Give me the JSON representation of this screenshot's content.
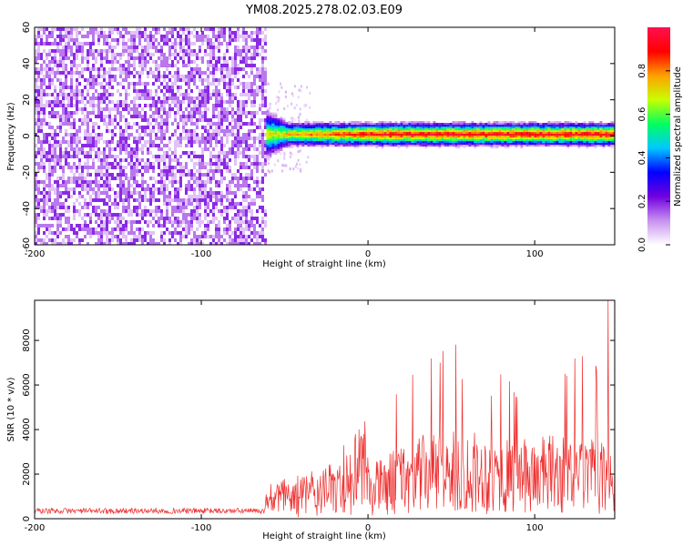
{
  "title": "YM08.2025.278.02.03.E09",
  "chart_data": [
    {
      "type": "heatmap",
      "xlabel": "Height of straight line (km)",
      "ylabel": "Frequency (Hz)",
      "xlim": [
        -200,
        148
      ],
      "ylim": [
        -60,
        60
      ],
      "xticks": [
        "-200",
        "-100",
        "0",
        "100"
      ],
      "yticks": [
        "-60",
        "-40",
        "-20",
        "0",
        "20",
        "40",
        "60"
      ],
      "colorbar": {
        "label": "Normalized spectral amplitude",
        "range": [
          0,
          1
        ],
        "ticks": [
          "0.0",
          "0.2",
          "0.4",
          "0.6",
          "0.8"
        ],
        "colors": [
          "#ffffff",
          "#c890f0",
          "#7000e0",
          "#0000ff",
          "#00c8ff",
          "#00ff60",
          "#c8ff00",
          "#ffa000",
          "#ff0000",
          "#ff1050"
        ]
      },
      "regions": [
        {
          "description": "noise",
          "x_range": [
            -200,
            -61
          ],
          "freq_range": [
            -60,
            60
          ],
          "amplitude": 0.05
        },
        {
          "description": "signal band",
          "x_range": [
            -61,
            148
          ],
          "center_freq": 1,
          "freq_halfwidth": 4,
          "peak_amplitude": 0.95
        },
        {
          "description": "sparse speckle",
          "x_range": [
            -61,
            -35
          ],
          "freq_range": [
            -20,
            30
          ],
          "amplitude": 0.05
        }
      ]
    },
    {
      "type": "line",
      "xlabel": "Height of straight line (km)",
      "ylabel": "SNR (10 * v/v)",
      "xlim": [
        -200,
        148
      ],
      "ylim": [
        0,
        9800
      ],
      "xticks": [
        "-200",
        "-100",
        "0",
        "100"
      ],
      "yticks": [
        "0",
        "2000",
        "4000",
        "6000",
        "8000"
      ],
      "color": "#ee3030",
      "trend_x": [
        -200,
        -62,
        -60,
        -50,
        -40,
        -30,
        -20,
        -10,
        0,
        10,
        20,
        30,
        40,
        50,
        60,
        70,
        80,
        90,
        100,
        110,
        120,
        130,
        140,
        148
      ],
      "trend_y": [
        350,
        350,
        1000,
        1100,
        1200,
        1300,
        1500,
        2000,
        2500,
        3000,
        3600,
        3900,
        4100,
        4100,
        4200,
        4000,
        3800,
        3700,
        3900,
        4000,
        3800,
        3900,
        3600,
        3200
      ],
      "peak": {
        "x": 144,
        "y": 9800
      }
    }
  ]
}
